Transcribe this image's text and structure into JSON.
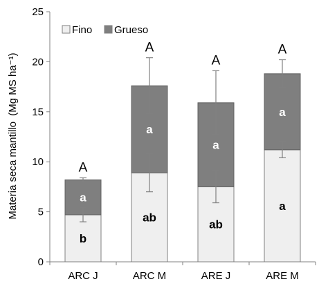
{
  "chart_data": {
    "type": "bar",
    "stacked": true,
    "categories": [
      "ARC J",
      "ARC M",
      "ARE J",
      "ARE M"
    ],
    "ylabel": "Materia seca mantillo",
    "ylabel_unit": "(Mg MS ha⁻¹)",
    "ylim": [
      0,
      25
    ],
    "yticks": [
      0,
      5,
      10,
      15,
      20,
      25
    ],
    "grid": false,
    "legend": "top-left",
    "series": [
      {
        "name": "Fino",
        "color": "#efefef",
        "values": [
          4.7,
          8.9,
          7.5,
          11.2
        ],
        "error": [
          0.7,
          1.9,
          1.6,
          0.8
        ],
        "letters": [
          "b",
          "ab",
          "ab",
          "a"
        ]
      },
      {
        "name": "Grueso",
        "color": "#7f7f7f",
        "values": [
          3.5,
          8.7,
          8.4,
          7.6
        ],
        "error": [
          0.2,
          2.8,
          3.2,
          1.4
        ],
        "letters": [
          "a",
          "a",
          "a",
          "a"
        ]
      }
    ],
    "total_letters": [
      "A",
      "A",
      "A",
      "A"
    ]
  }
}
